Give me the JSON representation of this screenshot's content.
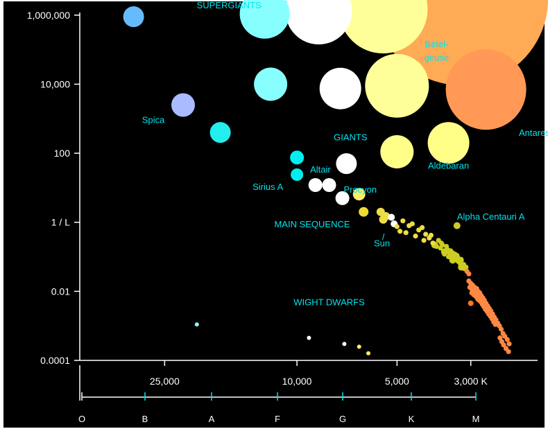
{
  "colors": {
    "background": "#000000",
    "axis": "#ffffff",
    "annotation": "#00e5ee"
  },
  "chart_data": {
    "type": "scatter",
    "title": "",
    "xlabel": "",
    "ylabel": "",
    "x_scale": "log",
    "y_scale": "log",
    "x_inverted": true,
    "xlim": [
      1800,
      45000
    ],
    "ylim": [
      0.0001,
      2500000
    ],
    "grid": false,
    "y_ticks": [
      {
        "value": 1000000,
        "label": "1,000,000"
      },
      {
        "value": 10000,
        "label": "10,000"
      },
      {
        "value": 100,
        "label": "100"
      },
      {
        "value": 1,
        "label": "1 / L"
      },
      {
        "value": 0.01,
        "label": "0.01"
      },
      {
        "value": 0.0001,
        "label": "0.0001"
      }
    ],
    "x_ticks": [
      {
        "value": 25000,
        "label": "25,000"
      },
      {
        "value": 10000,
        "label": "10,000"
      },
      {
        "value": 5000,
        "label": "5,000"
      },
      {
        "value": 3000,
        "label": "3,000 K"
      }
    ],
    "spectral_classes": [
      {
        "label": "O",
        "temp": 40000
      },
      {
        "label": "B",
        "temp": 20000
      },
      {
        "label": "A",
        "temp": 10000
      },
      {
        "label": "F",
        "temp": 7200
      },
      {
        "label": "G",
        "temp": 5300
      },
      {
        "label": "K",
        "temp": 3850
      },
      {
        "label": "M",
        "temp": 3000
      }
    ],
    "annotations": [
      {
        "text": "SUPERGIANTS",
        "temp": 16000,
        "lum": 2000000
      },
      {
        "text": "Betel-",
        "temp": 3800,
        "lum": 150000
      },
      {
        "text": "geuse",
        "temp": 3800,
        "lum": 60000
      },
      {
        "text": "Spica",
        "temp": 25000,
        "lum": 950
      },
      {
        "text": "Antares",
        "temp": 2150,
        "lum": 400
      },
      {
        "text": "GIANTS",
        "temp": 6900,
        "lum": 300
      },
      {
        "text": "Altair",
        "temp": 8500,
        "lum": 35
      },
      {
        "text": "Aldebaran",
        "temp": 3500,
        "lum": 45
      },
      {
        "text": "Sirius A",
        "temp": 11000,
        "lum": 11
      },
      {
        "text": "Procyon",
        "temp": 6450,
        "lum": 9
      },
      {
        "text": "MAIN SEQUENCE",
        "temp": 9000,
        "lum": 0.9
      },
      {
        "text": "Alpha Centauri A",
        "temp": 3300,
        "lum": 1.5
      },
      {
        "text": "/",
        "temp": 5500,
        "lum": 0.38
      },
      {
        "text": "Sun",
        "temp": 5550,
        "lum": 0.25
      },
      {
        "text": "WIGHT DWARFS",
        "temp": 8000,
        "lum": 0.005
      }
    ],
    "series": [
      {
        "stars": [
          {
            "temp": 3200,
            "lum": 3000000,
            "r": 125,
            "color": "#ffaa55"
          },
          {
            "temp": 5500,
            "lum": 1500000,
            "r": 64,
            "color": "#ffff99"
          },
          {
            "temp": 8600,
            "lum": 1300000,
            "r": 48,
            "color": "#ffffff"
          },
          {
            "temp": 12500,
            "lum": 1100000,
            "r": 36,
            "color": "#88ffff"
          },
          {
            "temp": 31000,
            "lum": 900000,
            "r": 15,
            "color": "#66bbff"
          },
          {
            "temp": 2700,
            "lum": 7000,
            "r": 58,
            "color": "#ff9955"
          },
          {
            "temp": 5000,
            "lum": 9000,
            "r": 46,
            "color": "#ffff99"
          },
          {
            "temp": 7400,
            "lum": 7500,
            "r": 30,
            "color": "#ffffff"
          },
          {
            "temp": 12000,
            "lum": 10000,
            "r": 24,
            "color": "#88ffff"
          },
          {
            "temp": 22000,
            "lum": 2500,
            "r": 17,
            "color": "#aabbff"
          },
          {
            "temp": 17000,
            "lum": 400,
            "r": 15,
            "color": "#22eeee"
          },
          {
            "temp": 3500,
            "lum": 200,
            "r": 30,
            "color": "#ffff88"
          },
          {
            "temp": 5000,
            "lum": 110,
            "r": 24,
            "color": "#ffff88"
          },
          {
            "temp": 7100,
            "lum": 50,
            "r": 15,
            "color": "#ffffff"
          },
          {
            "temp": 10000,
            "lum": 75,
            "r": 10,
            "color": "#00eeee"
          },
          {
            "temp": 10000,
            "lum": 24,
            "r": 9,
            "color": "#00eeee"
          },
          {
            "temp": 8800,
            "lum": 12,
            "r": 10,
            "color": "#ffffff"
          },
          {
            "temp": 8000,
            "lum": 12,
            "r": 10,
            "color": "#ffffff"
          },
          {
            "temp": 7300,
            "lum": 5,
            "r": 10,
            "color": "#ffffff"
          },
          {
            "temp": 6500,
            "lum": 6.5,
            "r": 9,
            "color": "#ffee66"
          },
          {
            "temp": 6300,
            "lum": 2,
            "r": 7,
            "color": "#eedd33"
          },
          {
            "temp": 3300,
            "lum": 0.8,
            "r": 5,
            "color": "#cccc22"
          },
          {
            "temp": 5600,
            "lum": 2,
            "r": 6,
            "color": "#eedd44"
          },
          {
            "temp": 5500,
            "lum": 1.2,
            "r": 6,
            "color": "#eedd44"
          },
          {
            "temp": 5400,
            "lum": 1.5,
            "r": 6,
            "color": "#eedd44"
          },
          {
            "temp": 5200,
            "lum": 1.4,
            "r": 5,
            "color": "#ffffff"
          },
          {
            "temp": 5100,
            "lum": 0.9,
            "r": 5,
            "color": "#ffffff"
          },
          {
            "temp": 3850,
            "lum": 0.22,
            "r": 5,
            "color": "#cccc22"
          },
          {
            "temp": 3600,
            "lum": 0.14,
            "r": 5,
            "color": "#cccc22"
          },
          {
            "temp": 3400,
            "lum": 0.08,
            "r": 5,
            "color": "#cccc22"
          },
          {
            "temp": 3200,
            "lum": 0.05,
            "r": 5,
            "color": "#cccc22"
          },
          {
            "temp": 3000,
            "lum": 0.0045,
            "r": 4,
            "color": "#ff7722"
          },
          {
            "temp": 20000,
            "lum": 0.0011,
            "r": 3,
            "color": "#88ffff"
          },
          {
            "temp": 9200,
            "lum": 0.00045,
            "r": 3,
            "color": "#ffffff"
          },
          {
            "temp": 7200,
            "lum": 0.0003,
            "r": 3,
            "color": "#ffffff"
          },
          {
            "temp": 6500,
            "lum": 0.00025,
            "r": 3,
            "color": "#ffee66"
          },
          {
            "temp": 6100,
            "lum": 0.00016,
            "r": 3,
            "color": "#ffee66"
          }
        ],
        "main_sequence_dots": [
          [
            4800,
            1.1
          ],
          [
            4600,
            0.8
          ],
          [
            4500,
            0.9
          ],
          [
            4300,
            0.6
          ],
          [
            4200,
            0.7
          ],
          [
            4100,
            0.45
          ],
          [
            3950,
            0.42
          ],
          [
            3900,
            0.25
          ],
          [
            3750,
            0.3
          ],
          [
            3700,
            0.18
          ],
          [
            3650,
            0.22
          ],
          [
            3600,
            0.12
          ],
          [
            3550,
            0.2
          ],
          [
            3500,
            0.1
          ],
          [
            3450,
            0.15
          ],
          [
            3400,
            0.13
          ],
          [
            3350,
            0.09
          ],
          [
            3300,
            0.11
          ],
          [
            3250,
            0.07
          ],
          [
            3200,
            0.08
          ],
          [
            3150,
            0.06
          ],
          [
            3100,
            0.05
          ],
          [
            5000,
            0.75
          ],
          [
            4900,
            0.55
          ],
          [
            4700,
            0.5
          ],
          [
            4400,
            0.4
          ],
          [
            4150,
            0.3
          ],
          [
            4000,
            0.35
          ],
          [
            3800,
            0.2
          ],
          [
            3680,
            0.25
          ],
          [
            3520,
            0.16
          ],
          [
            3480,
            0.13
          ],
          [
            3420,
            0.11
          ],
          [
            3380,
            0.1
          ],
          [
            3330,
            0.085
          ],
          [
            3280,
            0.075
          ],
          [
            3230,
            0.065
          ],
          [
            3180,
            0.055
          ],
          [
            3130,
            0.045
          ],
          [
            3080,
            0.038
          ],
          [
            3040,
            0.032
          ],
          [
            3350,
            0.12
          ],
          [
            3290,
            0.1
          ],
          [
            3210,
            0.085
          ],
          [
            3040,
            0.02
          ],
          [
            3000,
            0.017
          ],
          [
            2960,
            0.015
          ],
          [
            2920,
            0.013
          ],
          [
            2880,
            0.012
          ],
          [
            2850,
            0.01
          ],
          [
            2820,
            0.009
          ],
          [
            2790,
            0.0075
          ],
          [
            2760,
            0.0065
          ],
          [
            2730,
            0.0055
          ],
          [
            2700,
            0.0045
          ],
          [
            2670,
            0.0038
          ],
          [
            2640,
            0.0032
          ],
          [
            2610,
            0.0027
          ],
          [
            2580,
            0.0022
          ],
          [
            2550,
            0.0018
          ],
          [
            2520,
            0.0015
          ],
          [
            2490,
            0.0012
          ],
          [
            2460,
            0.001
          ],
          [
            2430,
            0.0008
          ],
          [
            2400,
            0.0006
          ],
          [
            2370,
            0.0005
          ],
          [
            2330,
            0.0004
          ],
          [
            2300,
            0.0003
          ],
          [
            2980,
            0.009
          ],
          [
            2940,
            0.008
          ],
          [
            2900,
            0.0072
          ],
          [
            2860,
            0.006
          ],
          [
            2830,
            0.0055
          ],
          [
            2800,
            0.005
          ],
          [
            2770,
            0.0042
          ],
          [
            2740,
            0.0036
          ],
          [
            2710,
            0.003
          ],
          [
            2680,
            0.0026
          ],
          [
            2650,
            0.0022
          ],
          [
            2620,
            0.0019
          ],
          [
            2590,
            0.0016
          ],
          [
            2560,
            0.0013
          ],
          [
            2530,
            0.0011
          ],
          [
            3020,
            0.013
          ],
          [
            2970,
            0.011
          ],
          [
            2910,
            0.0095
          ],
          [
            2870,
            0.0082
          ],
          [
            2840,
            0.007
          ],
          [
            2810,
            0.006
          ],
          [
            2780,
            0.0052
          ],
          [
            2750,
            0.0046
          ],
          [
            2720,
            0.004
          ],
          [
            2690,
            0.0034
          ],
          [
            2660,
            0.0029
          ],
          [
            2630,
            0.0024
          ],
          [
            2450,
            0.00045
          ],
          [
            2420,
            0.00035
          ],
          [
            2390,
            0.00028
          ],
          [
            2350,
            0.00022
          ],
          [
            2310,
            0.00018
          ]
        ]
      }
    ]
  }
}
